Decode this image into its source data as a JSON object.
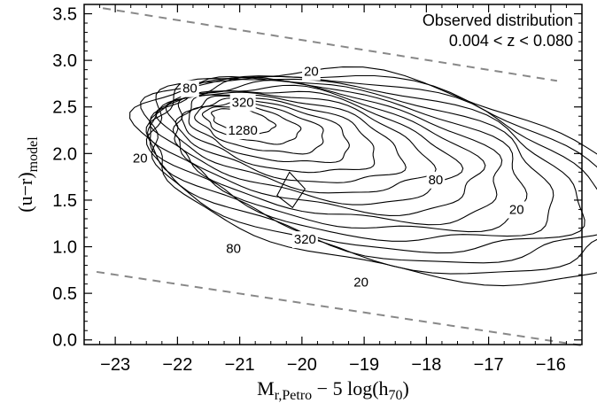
{
  "chart_data": {
    "type": "contour",
    "xlabel_main": "M",
    "xlabel_sub": "r,Petro",
    "xlabel_tail": " − 5 log(h",
    "xlabel_tail_sub": "70",
    "xlabel_close": ")",
    "ylabel_main": "(u−r)",
    "ylabel_sub": "model",
    "xlim": [
      -23.5,
      -15.5
    ],
    "ylim": [
      -0.05,
      3.6
    ],
    "xticks": [
      -23,
      -22,
      -21,
      -20,
      -19,
      -18,
      -17,
      -16
    ],
    "xtick_labels": [
      "−23",
      "−22",
      "−21",
      "−20",
      "−19",
      "−18",
      "−17",
      "−16"
    ],
    "yticks": [
      0.0,
      0.5,
      1.0,
      1.5,
      2.0,
      2.5,
      3.0,
      3.5
    ],
    "ytick_labels": [
      "0.0",
      "0.5",
      "1.0",
      "1.5",
      "2.0",
      "2.5",
      "3.0",
      "3.5"
    ],
    "annotation": {
      "line1": "Observed distribution",
      "line2": "0.004 < z < 0.080"
    },
    "contour_labels": [
      {
        "text": "20",
        "x": -19.85,
        "y": 2.88
      },
      {
        "text": "80",
        "x": -21.8,
        "y": 2.7
      },
      {
        "text": "320",
        "x": -20.95,
        "y": 2.55
      },
      {
        "text": "1280",
        "x": -20.95,
        "y": 2.25
      },
      {
        "text": "20",
        "x": -22.6,
        "y": 1.95
      },
      {
        "text": "80",
        "x": -17.85,
        "y": 1.72
      },
      {
        "text": "20",
        "x": -16.55,
        "y": 1.4
      },
      {
        "text": "320",
        "x": -19.95,
        "y": 1.08
      },
      {
        "text": "80",
        "x": -21.1,
        "y": 0.98
      },
      {
        "text": "20",
        "x": -19.05,
        "y": 0.62
      }
    ],
    "dashed_lines": [
      {
        "x": [
          -23.2,
          -15.9
        ],
        "y": [
          3.56,
          2.78
        ]
      },
      {
        "x": [
          -23.3,
          -15.5
        ],
        "y": [
          0.73,
          -0.06
        ]
      }
    ],
    "colors": {
      "contour": "#000000",
      "dashed": "#888888",
      "axis": "#000000"
    },
    "n_contour_levels": 16,
    "peak": {
      "x": -20.95,
      "y": 2.35
    }
  }
}
